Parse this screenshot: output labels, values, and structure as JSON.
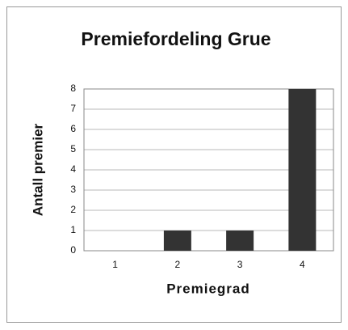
{
  "chart_data": {
    "type": "bar",
    "title": "Premiefordeling Grue",
    "x_label": "Premiegrad",
    "y_label": "Antall premier",
    "categories": [
      "1",
      "2",
      "3",
      "4"
    ],
    "values": [
      0,
      1,
      1,
      8
    ],
    "color": "#333333",
    "ylim": [
      0,
      8
    ],
    "yticks": [
      0,
      1,
      2,
      3,
      4,
      5,
      6,
      7,
      8
    ],
    "grid": true
  }
}
